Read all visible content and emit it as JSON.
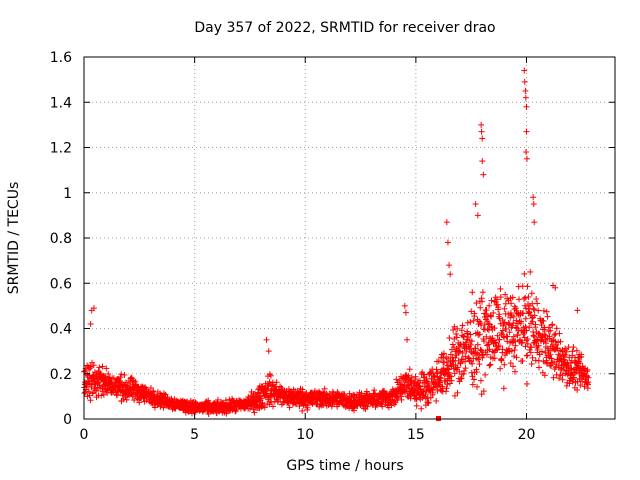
{
  "chart_data": {
    "type": "scatter",
    "title": "Day 357 of 2022, SRMTID for receiver drao",
    "xlabel": "GPS time / hours",
    "ylabel": "SRMTID / TECUs",
    "xlim": [
      0,
      24
    ],
    "ylim": [
      0,
      1.6
    ],
    "grid": true,
    "marker": "+",
    "marker_color": "#ff0000",
    "x_ticks": [
      0,
      5,
      10,
      15,
      20
    ],
    "x_tick_labels": [
      "0",
      "5",
      "10",
      "15",
      "20"
    ],
    "y_ticks": [
      0,
      0.2,
      0.4,
      0.6,
      0.8,
      1.0,
      1.2,
      1.4,
      1.6
    ],
    "y_tick_labels": [
      "0",
      "0.2",
      "0.4",
      "0.6",
      "0.8",
      "1",
      "1.2",
      "1.4",
      "1.6"
    ],
    "series": [
      {
        "name": "SRMTID",
        "profile_x": [
          0,
          0.3,
          0.5,
          1,
          1.5,
          2,
          2.5,
          3,
          4,
          5,
          6,
          7,
          7.8,
          8.3,
          9,
          10,
          11,
          12,
          13,
          14,
          14.5,
          15,
          15.5,
          16,
          16.5,
          17,
          17.5,
          18,
          18.5,
          19,
          19.5,
          20,
          20.5,
          21,
          21.5,
          22,
          22.5,
          22.8
        ],
        "profile_y_typical": [
          0.14,
          0.18,
          0.17,
          0.16,
          0.14,
          0.13,
          0.12,
          0.1,
          0.07,
          0.05,
          0.05,
          0.06,
          0.08,
          0.13,
          0.1,
          0.09,
          0.09,
          0.08,
          0.08,
          0.1,
          0.15,
          0.13,
          0.14,
          0.18,
          0.22,
          0.3,
          0.33,
          0.35,
          0.38,
          0.38,
          0.4,
          0.42,
          0.38,
          0.32,
          0.27,
          0.22,
          0.2,
          0.18
        ],
        "profile_y_spread": [
          0.08,
          0.12,
          0.08,
          0.07,
          0.06,
          0.06,
          0.05,
          0.04,
          0.03,
          0.03,
          0.03,
          0.03,
          0.05,
          0.08,
          0.05,
          0.05,
          0.04,
          0.04,
          0.04,
          0.05,
          0.08,
          0.08,
          0.08,
          0.1,
          0.12,
          0.18,
          0.2,
          0.22,
          0.2,
          0.2,
          0.2,
          0.22,
          0.2,
          0.15,
          0.12,
          0.1,
          0.08,
          0.07
        ],
        "peaks": [
          {
            "x": 0.3,
            "y": 0.42
          },
          {
            "x": 0.35,
            "y": 0.48
          },
          {
            "x": 0.45,
            "y": 0.49
          },
          {
            "x": 8.25,
            "y": 0.35
          },
          {
            "x": 8.35,
            "y": 0.3
          },
          {
            "x": 14.5,
            "y": 0.5
          },
          {
            "x": 14.55,
            "y": 0.47
          },
          {
            "x": 14.6,
            "y": 0.35
          },
          {
            "x": 16.4,
            "y": 0.87
          },
          {
            "x": 16.45,
            "y": 0.78
          },
          {
            "x": 16.5,
            "y": 0.68
          },
          {
            "x": 16.55,
            "y": 0.64
          },
          {
            "x": 17.7,
            "y": 0.95
          },
          {
            "x": 17.8,
            "y": 0.9
          },
          {
            "x": 17.95,
            "y": 1.3
          },
          {
            "x": 17.97,
            "y": 1.27
          },
          {
            "x": 18.0,
            "y": 1.24
          },
          {
            "x": 18.0,
            "y": 1.14
          },
          {
            "x": 18.05,
            "y": 1.08
          },
          {
            "x": 19.9,
            "y": 1.54
          },
          {
            "x": 19.92,
            "y": 1.49
          },
          {
            "x": 19.95,
            "y": 1.45
          },
          {
            "x": 19.97,
            "y": 1.42
          },
          {
            "x": 20.0,
            "y": 1.38
          },
          {
            "x": 20.0,
            "y": 1.27
          },
          {
            "x": 19.98,
            "y": 1.18
          },
          {
            "x": 20.02,
            "y": 1.15
          },
          {
            "x": 20.3,
            "y": 0.98
          },
          {
            "x": 20.33,
            "y": 0.95
          },
          {
            "x": 20.35,
            "y": 0.87
          },
          {
            "x": 21.2,
            "y": 0.59
          },
          {
            "x": 21.3,
            "y": 0.58
          },
          {
            "x": 22.3,
            "y": 0.48
          }
        ],
        "flagged_point": {
          "x": 16.0,
          "y": 0.0
        }
      }
    ]
  }
}
